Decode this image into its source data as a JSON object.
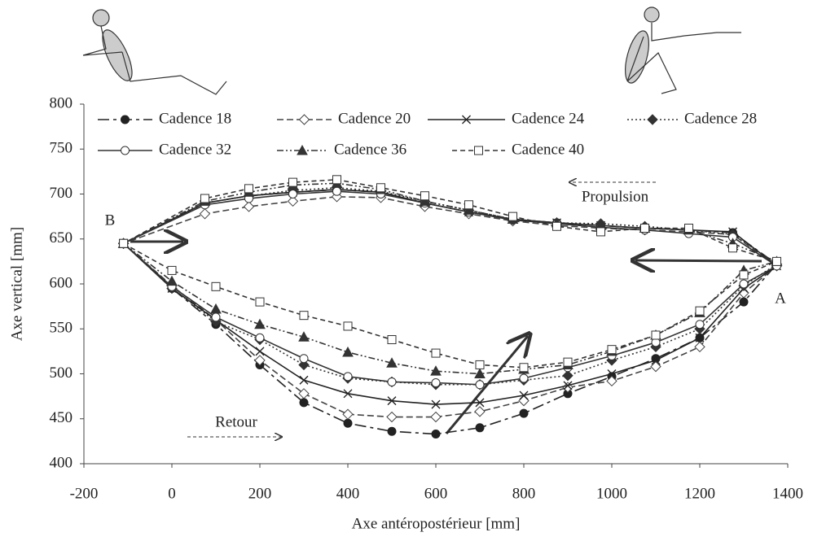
{
  "chart_data": {
    "type": "line",
    "xlabel": "Axe antéropostérieur [mm]",
    "ylabel": "Axe vertical [mm]",
    "xlim": [
      -200,
      1400
    ],
    "xticks": [
      -200,
      0,
      200,
      400,
      600,
      800,
      1000,
      1200,
      1400
    ],
    "ylim": [
      400,
      800
    ],
    "yticks": [
      400,
      450,
      500,
      550,
      600,
      650,
      700,
      750,
      800
    ],
    "annotations": [
      "B",
      "A",
      "Propulsion",
      "Retour"
    ],
    "series": [
      {
        "name": "Cadence 18",
        "color": "#222",
        "dash": "14 5 4 5",
        "marker": "circle-filled",
        "x": [
          -110,
          0,
          100,
          200,
          300,
          400,
          500,
          600,
          700,
          800,
          900,
          1000,
          1100,
          1200,
          1300,
          1375,
          1275,
          1175,
          1075,
          975,
          875,
          775,
          675,
          575,
          475,
          375,
          275,
          175,
          75,
          -110
        ],
        "values": [
          645,
          595,
          555,
          510,
          468,
          445,
          436,
          433,
          440,
          456,
          478,
          497,
          517,
          540,
          580,
          622,
          657,
          660,
          662,
          665,
          668,
          672,
          680,
          690,
          702,
          705,
          702,
          698,
          690,
          645
        ]
      },
      {
        "name": "Cadence 20",
        "color": "#444",
        "dash": "8 4",
        "marker": "diamond-open",
        "x": [
          -110,
          0,
          100,
          200,
          300,
          400,
          500,
          600,
          700,
          800,
          900,
          1000,
          1100,
          1200,
          1300,
          1375,
          1275,
          1175,
          1075,
          975,
          875,
          775,
          675,
          575,
          475,
          375,
          275,
          175,
          75,
          -110
        ],
        "values": [
          645,
          598,
          560,
          515,
          478,
          455,
          452,
          452,
          458,
          470,
          485,
          492,
          508,
          530,
          590,
          620,
          655,
          658,
          660,
          662,
          665,
          670,
          678,
          686,
          696,
          697,
          692,
          686,
          678,
          645
        ]
      },
      {
        "name": "Cadence 24",
        "color": "#222",
        "dash": "",
        "marker": "cross",
        "x": [
          -110,
          0,
          100,
          200,
          300,
          400,
          500,
          600,
          700,
          800,
          900,
          1000,
          1100,
          1200,
          1300,
          1375,
          1275,
          1175,
          1075,
          975,
          875,
          775,
          675,
          575,
          475,
          375,
          275,
          175,
          75,
          -110
        ],
        "values": [
          645,
          595,
          560,
          525,
          493,
          478,
          470,
          466,
          468,
          476,
          487,
          500,
          515,
          540,
          595,
          620,
          658,
          660,
          662,
          665,
          668,
          672,
          680,
          690,
          702,
          705,
          702,
          698,
          690,
          645
        ]
      },
      {
        "name": "Cadence 28",
        "color": "#333",
        "dash": "2 3",
        "marker": "diamond-filled",
        "x": [
          -110,
          0,
          100,
          200,
          300,
          400,
          500,
          600,
          700,
          800,
          900,
          1000,
          1100,
          1200,
          1300,
          1375,
          1275,
          1175,
          1075,
          975,
          875,
          775,
          675,
          575,
          475,
          375,
          275,
          175,
          75,
          -110
        ],
        "values": [
          645,
          595,
          558,
          538,
          510,
          495,
          491,
          488,
          488,
          493,
          498,
          515,
          530,
          550,
          598,
          622,
          655,
          660,
          664,
          667,
          668,
          672,
          682,
          692,
          703,
          707,
          704,
          698,
          690,
          645
        ]
      },
      {
        "name": "Cadence 32",
        "color": "#333",
        "dash": "",
        "marker": "circle-open",
        "x": [
          -110,
          0,
          100,
          200,
          300,
          400,
          500,
          600,
          700,
          800,
          900,
          1000,
          1100,
          1200,
          1300,
          1375,
          1275,
          1175,
          1075,
          975,
          875,
          775,
          675,
          575,
          475,
          375,
          275,
          175,
          75,
          -110
        ],
        "values": [
          645,
          597,
          563,
          540,
          517,
          497,
          491,
          490,
          488,
          495,
          507,
          520,
          535,
          555,
          600,
          620,
          652,
          656,
          660,
          663,
          667,
          671,
          680,
          690,
          700,
          703,
          700,
          695,
          688,
          645
        ]
      },
      {
        "name": "Cadence 36",
        "color": "#333",
        "dash": "8 3 2 3 2 3",
        "marker": "triangle-filled",
        "x": [
          -110,
          0,
          100,
          200,
          300,
          400,
          500,
          600,
          700,
          800,
          900,
          1000,
          1100,
          1200,
          1300,
          1375,
          1275,
          1175,
          1075,
          975,
          875,
          775,
          675,
          575,
          475,
          375,
          275,
          175,
          75,
          -110
        ],
        "values": [
          645,
          603,
          572,
          555,
          541,
          524,
          512,
          503,
          500,
          505,
          510,
          525,
          543,
          568,
          615,
          625,
          645,
          660,
          662,
          665,
          668,
          672,
          682,
          692,
          705,
          712,
          710,
          702,
          692,
          645
        ]
      },
      {
        "name": "Cadence 40",
        "color": "#333",
        "dash": "6 4",
        "marker": "square-open",
        "x": [
          -110,
          0,
          100,
          200,
          300,
          400,
          500,
          600,
          700,
          800,
          900,
          1000,
          1100,
          1200,
          1300,
          1375,
          1275,
          1175,
          1075,
          975,
          875,
          775,
          675,
          575,
          475,
          375,
          275,
          175,
          75,
          -110
        ],
        "values": [
          645,
          615,
          597,
          580,
          565,
          553,
          538,
          523,
          510,
          507,
          513,
          527,
          543,
          570,
          610,
          625,
          640,
          662,
          662,
          658,
          664,
          675,
          688,
          698,
          707,
          716,
          713,
          706,
          695,
          645
        ]
      }
    ]
  }
}
